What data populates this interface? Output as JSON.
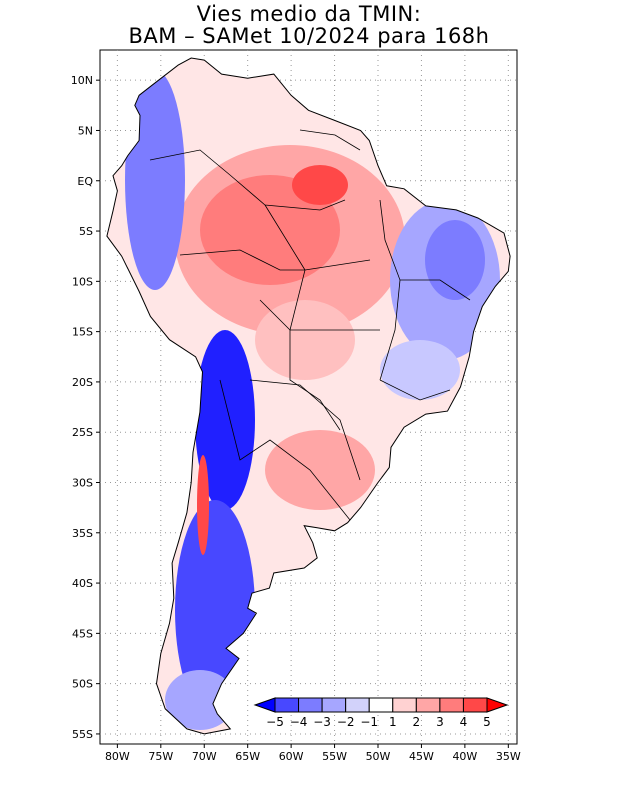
{
  "title": {
    "line1": "Vies medio da TMIN:",
    "line2": "BAM – SAMet 10/2024  para 168h"
  },
  "map": {
    "region": "South America",
    "lat_ticks": [
      "10N",
      "5N",
      "EQ",
      "5S",
      "10S",
      "15S",
      "20S",
      "25S",
      "30S",
      "35S",
      "40S",
      "45S",
      "50S",
      "55S"
    ],
    "lon_ticks": [
      "80W",
      "75W",
      "70W",
      "65W",
      "60W",
      "55W",
      "50W",
      "45W",
      "40W",
      "35W"
    ],
    "lon_range": [
      -82,
      -34
    ],
    "lat_range": [
      -56,
      13
    ]
  },
  "colorbar": {
    "labels": [
      "−5",
      "−4",
      "−3",
      "−2",
      "−1",
      "1",
      "2",
      "3",
      "4",
      "5"
    ],
    "colors": [
      "#0000ff",
      "#4848ff",
      "#7c7cff",
      "#a6a6ff",
      "#d2d2fa",
      "#ffffff",
      "#ffd2d2",
      "#ffa6a6",
      "#ff7c7c",
      "#ff4848",
      "#ff0000"
    ]
  }
}
